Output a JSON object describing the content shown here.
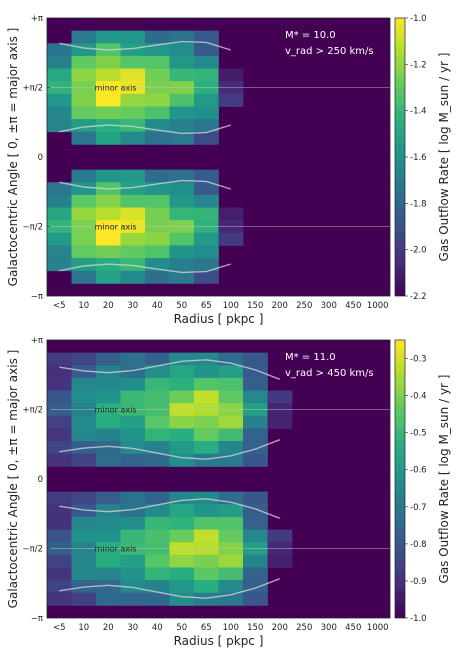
{
  "chart_data": [
    {
      "type": "heatmap",
      "xlabel": "Radius [ pkpc ]",
      "ylabel": "Galactocentric Angle [ 0, ±π = major axis ]",
      "x_tick_labels": [
        "<5",
        "10",
        "20",
        "30",
        "40",
        "50",
        "65",
        "100",
        "150",
        "200",
        "250",
        "300",
        "450",
        "1000"
      ],
      "y_tick_labels": [
        "+π",
        "+π/2",
        "0",
        "−π/2",
        "−π"
      ],
      "colorbar_label": "Gas Outflow Rate [ log M_sun / yr ]",
      "colorbar_ticks": [
        "-1.0",
        "-1.2",
        "-1.4",
        "-1.6",
        "-1.8",
        "-2.0",
        "-2.2"
      ],
      "clim": [
        -2.2,
        -1.0
      ],
      "annotation_mass": "M* = 10.0",
      "annotation_vrad": "v_rad > 250 km/s",
      "minor_axis_label": "minor axis",
      "columns": [
        {
          "bin": "<5",
          "amp": 0.6,
          "width": 1.0,
          "extent": 2.3
        },
        {
          "bin": "10",
          "amp": 0.85,
          "width": 1.0,
          "extent": 3.1
        },
        {
          "bin": "20",
          "amp": 1.0,
          "width": 1.0,
          "extent": 3.1
        },
        {
          "bin": "30",
          "amp": 0.95,
          "width": 0.95,
          "extent": 3.1
        },
        {
          "bin": "40",
          "amp": 0.85,
          "width": 0.9,
          "extent": 3.1
        },
        {
          "bin": "50",
          "amp": 0.75,
          "width": 0.85,
          "extent": 3.1
        },
        {
          "bin": "65",
          "amp": 0.65,
          "width": 0.75,
          "extent": 3.1
        },
        {
          "bin": "100",
          "amp": 0.15,
          "width": 0.5,
          "extent": 1.1
        }
      ]
    },
    {
      "type": "heatmap",
      "xlabel": "Radius [ pkpc ]",
      "ylabel": "Galactocentric Angle [ 0, ±π = major axis ]",
      "x_tick_labels": [
        "<5",
        "10",
        "20",
        "30",
        "40",
        "50",
        "65",
        "100",
        "150",
        "200",
        "250",
        "300",
        "450",
        "1000"
      ],
      "y_tick_labels": [
        "+π",
        "+π/2",
        "0",
        "−π/2",
        "−π"
      ],
      "colorbar_label": "Gas Outflow Rate [ log M_sun / yr ]",
      "colorbar_ticks": [
        "-0.3",
        "-0.4",
        "-0.5",
        "-0.6",
        "-0.7",
        "-0.8",
        "-0.9",
        "-1.0"
      ],
      "clim": [
        -1.0,
        -0.25
      ],
      "annotation_mass": "M* = 11.0",
      "annotation_vrad": "v_rad > 450 km/s",
      "minor_axis_label": "minor axis",
      "columns": [
        {
          "bin": "<5",
          "amp": 0.25,
          "width": 0.9,
          "extent": 2.8
        },
        {
          "bin": "10",
          "amp": 0.5,
          "width": 0.95,
          "extent": 3.0
        },
        {
          "bin": "20",
          "amp": 0.6,
          "width": 0.95,
          "extent": 3.0
        },
        {
          "bin": "30",
          "amp": 0.65,
          "width": 0.95,
          "extent": 3.0
        },
        {
          "bin": "40",
          "amp": 0.75,
          "width": 0.95,
          "extent": 3.0
        },
        {
          "bin": "50",
          "amp": 0.85,
          "width": 0.95,
          "extent": 3.0
        },
        {
          "bin": "65",
          "amp": 0.9,
          "width": 0.95,
          "extent": 3.0
        },
        {
          "bin": "100",
          "amp": 0.85,
          "width": 0.9,
          "extent": 3.0
        },
        {
          "bin": "150",
          "amp": 0.5,
          "width": 0.8,
          "extent": 2.6
        },
        {
          "bin": "200",
          "amp": 0.15,
          "width": 0.5,
          "extent": 0.9
        }
      ]
    }
  ]
}
